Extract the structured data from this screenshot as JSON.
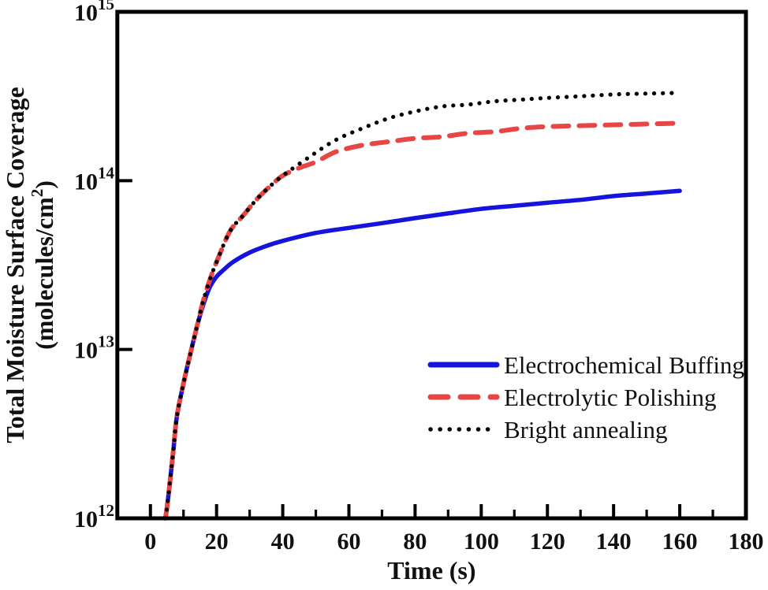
{
  "chart_data": {
    "type": "line",
    "title": "",
    "xlabel": "Time (s)",
    "ylabel": {
      "line1": "Total Moisture Surface Coverage",
      "line2_prefix": "(molecules/cm",
      "line2_sup": "2",
      "line2_suffix": ")"
    },
    "x_axis": {
      "min": -10,
      "max": 180,
      "major_ticks": [
        0,
        20,
        40,
        60,
        80,
        100,
        120,
        140,
        160,
        180
      ],
      "minor_ticks": [
        10,
        30,
        50,
        70,
        90,
        110,
        130,
        150,
        170
      ]
    },
    "y_axis": {
      "scale": "log",
      "min_exp": 12,
      "max_exp": 15,
      "ticks": [
        {
          "base": "10",
          "exp": "15"
        },
        {
          "base": "10",
          "exp": "14"
        },
        {
          "base": "10",
          "exp": "13"
        },
        {
          "base": "10",
          "exp": "12"
        }
      ]
    },
    "grid": false,
    "legend_position": "inside-right-middle",
    "series": [
      {
        "name": "Electrochemical Buffing",
        "slug": "electrochemical-buffing",
        "color": "#1414dd",
        "style": "solid",
        "points": [
          [
            4.5,
            1000000000000.0
          ],
          [
            5,
            1150000000000.0
          ],
          [
            6,
            1700000000000.0
          ],
          [
            7,
            2600000000000.0
          ],
          [
            8,
            4000000000000.0
          ],
          [
            10,
            6300000000000.0
          ],
          [
            12,
            9300000000000.0
          ],
          [
            14,
            13500000000000.0
          ],
          [
            16,
            18500000000000.0
          ],
          [
            18,
            23500000000000.0
          ],
          [
            20,
            27000000000000.0
          ],
          [
            22,
            29500000000000.0
          ],
          [
            25,
            33000000000000.0
          ],
          [
            30,
            37500000000000.0
          ],
          [
            35,
            41000000000000.0
          ],
          [
            40,
            44000000000000.0
          ],
          [
            50,
            49000000000000.0
          ],
          [
            60,
            52500000000000.0
          ],
          [
            70,
            56000000000000.0
          ],
          [
            80,
            60000000000000.0
          ],
          [
            90,
            64000000000000.0
          ],
          [
            100,
            68000000000000.0
          ],
          [
            110,
            71000000000000.0
          ],
          [
            120,
            74000000000000.0
          ],
          [
            130,
            77000000000000.0
          ],
          [
            140,
            81000000000000.0
          ],
          [
            150,
            84000000000000.0
          ],
          [
            160,
            87000000000000.0
          ]
        ]
      },
      {
        "name": "Electrolytic Polishing",
        "slug": "electrolytic-polishing",
        "color": "#e84545",
        "style": "dashed",
        "points": [
          [
            4.5,
            1000000000000.0
          ],
          [
            5,
            1150000000000.0
          ],
          [
            6,
            1700000000000.0
          ],
          [
            7,
            2600000000000.0
          ],
          [
            8,
            4000000000000.0
          ],
          [
            10,
            6300000000000.0
          ],
          [
            12,
            9300000000000.0
          ],
          [
            14,
            13500000000000.0
          ],
          [
            16,
            19500000000000.0
          ],
          [
            18,
            26000000000000.0
          ],
          [
            20,
            33000000000000.0
          ],
          [
            24,
            50000000000000.0
          ],
          [
            28,
            62000000000000.0
          ],
          [
            32,
            77000000000000.0
          ],
          [
            36,
            92000000000000.0
          ],
          [
            40,
            107000000000000.0
          ],
          [
            45,
            119000000000000.0
          ],
          [
            50,
            129000000000000.0
          ],
          [
            56,
            148000000000000.0
          ],
          [
            64,
            162000000000000.0
          ],
          [
            72,
            170000000000000.0
          ],
          [
            80,
            178000000000000.0
          ],
          [
            88,
            182000000000000.0
          ],
          [
            96,
            191000000000000.0
          ],
          [
            104,
            195000000000000.0
          ],
          [
            112,
            204000000000000.0
          ],
          [
            120,
            209000000000000.0
          ],
          [
            140,
            214000000000000.0
          ],
          [
            160,
            219000000000000.0
          ]
        ]
      },
      {
        "name": "Bright annealing",
        "slug": "bright-annealing",
        "color": "#000000",
        "style": "dotted",
        "points": [
          [
            4.5,
            1000000000000.0
          ],
          [
            5,
            1150000000000.0
          ],
          [
            6,
            1700000000000.0
          ],
          [
            7,
            2600000000000.0
          ],
          [
            8,
            4000000000000.0
          ],
          [
            10,
            6300000000000.0
          ],
          [
            12,
            9300000000000.0
          ],
          [
            14,
            13500000000000.0
          ],
          [
            16,
            19500000000000.0
          ],
          [
            18,
            26000000000000.0
          ],
          [
            20,
            33000000000000.0
          ],
          [
            24,
            50000000000000.0
          ],
          [
            28,
            62000000000000.0
          ],
          [
            32,
            77000000000000.0
          ],
          [
            36,
            92000000000000.0
          ],
          [
            40,
            107000000000000.0
          ],
          [
            48,
            138000000000000.0
          ],
          [
            56,
            174000000000000.0
          ],
          [
            64,
            204000000000000.0
          ],
          [
            72,
            234000000000000.0
          ],
          [
            80,
            257000000000000.0
          ],
          [
            88,
            275000000000000.0
          ],
          [
            96,
            282000000000000.0
          ],
          [
            104,
            295000000000000.0
          ],
          [
            112,
            302000000000000.0
          ],
          [
            120,
            309000000000000.0
          ],
          [
            130,
            316000000000000.0
          ],
          [
            140,
            324000000000000.0
          ],
          [
            150,
            328000000000000.0
          ],
          [
            160,
            331000000000000.0
          ]
        ]
      }
    ],
    "colors": {
      "frame": "#000000",
      "text": "#111111"
    }
  }
}
